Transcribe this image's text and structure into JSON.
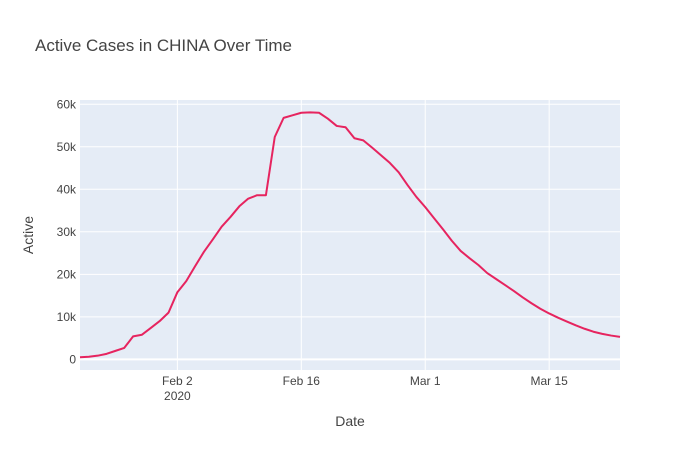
{
  "chart_data": {
    "type": "line",
    "title": "Active Cases in CHINA Over Time",
    "xlabel": "Date",
    "ylabel": "Active",
    "x_ticks": [
      {
        "date": "2020-02-02",
        "label": "Feb 2",
        "sublabel": "2020"
      },
      {
        "date": "2020-02-16",
        "label": "Feb 16",
        "sublabel": ""
      },
      {
        "date": "2020-03-01",
        "label": "Mar 1",
        "sublabel": ""
      },
      {
        "date": "2020-03-15",
        "label": "Mar 15",
        "sublabel": ""
      }
    ],
    "xlim": [
      "2020-01-22",
      "2020-03-23"
    ],
    "y_ticks": [
      {
        "value": 0,
        "label": "0"
      },
      {
        "value": 10000,
        "label": "10k"
      },
      {
        "value": 20000,
        "label": "20k"
      },
      {
        "value": 30000,
        "label": "30k"
      },
      {
        "value": 40000,
        "label": "40k"
      },
      {
        "value": 50000,
        "label": "50k"
      },
      {
        "value": 60000,
        "label": "60k"
      }
    ],
    "ylim": [
      -2500,
      61000
    ],
    "grid": true,
    "line_color": "#e6245f",
    "plot_bg": "#e5ecf6",
    "series": [
      {
        "x": [
          "2020-01-22",
          "2020-01-23",
          "2020-01-24",
          "2020-01-25",
          "2020-01-26",
          "2020-01-27",
          "2020-01-28",
          "2020-01-29",
          "2020-01-30",
          "2020-01-31",
          "2020-02-01",
          "2020-02-02",
          "2020-02-03",
          "2020-02-04",
          "2020-02-05",
          "2020-02-06",
          "2020-02-07",
          "2020-02-08",
          "2020-02-09",
          "2020-02-10",
          "2020-02-11",
          "2020-02-12",
          "2020-02-13",
          "2020-02-14",
          "2020-02-15",
          "2020-02-16",
          "2020-02-17",
          "2020-02-18",
          "2020-02-19",
          "2020-02-20",
          "2020-02-21",
          "2020-02-22",
          "2020-02-23",
          "2020-02-24",
          "2020-02-25",
          "2020-02-26",
          "2020-02-27",
          "2020-02-28",
          "2020-02-29",
          "2020-03-01",
          "2020-03-02",
          "2020-03-03",
          "2020-03-04",
          "2020-03-05",
          "2020-03-06",
          "2020-03-07",
          "2020-03-08",
          "2020-03-09",
          "2020-03-10",
          "2020-03-11",
          "2020-03-12",
          "2020-03-13",
          "2020-03-14",
          "2020-03-15",
          "2020-03-16",
          "2020-03-17",
          "2020-03-18",
          "2020-03-19",
          "2020-03-20",
          "2020-03-21",
          "2020-03-22",
          "2020-03-23"
        ],
        "values": [
          510,
          610,
          870,
          1300,
          2000,
          2700,
          5400,
          5800,
          7400,
          9000,
          11000,
          15800,
          18400,
          21900,
          25300,
          28200,
          31200,
          33500,
          36000,
          37800,
          38600,
          38600,
          52300,
          56800,
          57400,
          58000,
          58100,
          58000,
          56600,
          54900,
          54600,
          52000,
          51500,
          49800,
          48000,
          46200,
          44000,
          41000,
          38200,
          35800,
          33200,
          30600,
          27900,
          25500,
          23800,
          22200,
          20300,
          18900,
          17500,
          16100,
          14600,
          13200,
          11900,
          10800,
          9800,
          8900,
          8000,
          7200,
          6500,
          6000,
          5600,
          5300
        ]
      }
    ]
  }
}
